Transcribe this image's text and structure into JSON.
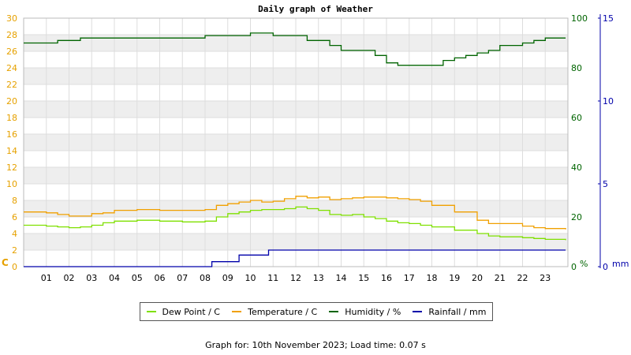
{
  "title": "Daily graph of Weather",
  "footer": "Graph for: 10th November 2023; Load time: 0.07 s",
  "colors": {
    "background": "#ffffff",
    "band": "#eeeeee",
    "grid": "#dddddd",
    "left_axis": "#e6a100",
    "right_axis_humidity": "#006400",
    "right_axis_rain": "#0000aa",
    "dew": "#7fe000",
    "temp": "#f0a000",
    "hum": "#006400",
    "rain": "#0000aa"
  },
  "chart_data": {
    "type": "line",
    "x_hours": [
      "01",
      "02",
      "03",
      "04",
      "05",
      "06",
      "07",
      "08",
      "09",
      "10",
      "11",
      "12",
      "13",
      "14",
      "15",
      "16",
      "17",
      "18",
      "19",
      "20",
      "21",
      "22",
      "23"
    ],
    "xlim": [
      0,
      24
    ],
    "axes": {
      "left": {
        "unit_label": "C",
        "ylim": [
          0,
          30
        ],
        "ticks": [
          0,
          2,
          4,
          6,
          8,
          10,
          12,
          14,
          16,
          18,
          20,
          22,
          24,
          26,
          28,
          30
        ]
      },
      "right_humidity": {
        "unit_label": "%",
        "ylim": [
          0,
          100
        ],
        "ticks": [
          0,
          20,
          40,
          60,
          80,
          100
        ]
      },
      "right_rain": {
        "unit_label": "mm",
        "ylim": [
          0,
          15
        ],
        "ticks": [
          0,
          5,
          10,
          15
        ]
      }
    },
    "grid": true,
    "legend": [
      {
        "key": "dew",
        "label": "Dew Point / C"
      },
      {
        "key": "temp",
        "label": "Temperature / C"
      },
      {
        "key": "hum",
        "label": "Humidity / %"
      },
      {
        "key": "rain",
        "label": "Rainfall / mm"
      }
    ],
    "series": [
      {
        "name": "Dew Point / C",
        "key": "dew",
        "axis": "left",
        "x": [
          0,
          1,
          1.5,
          2,
          2.5,
          3,
          3.5,
          4,
          5,
          6,
          7,
          7.5,
          8,
          8.5,
          9,
          9.5,
          10,
          10.5,
          11,
          11.5,
          12,
          12.5,
          13,
          13.5,
          14,
          14.5,
          15,
          15.5,
          16,
          16.5,
          17,
          17.5,
          18,
          19,
          20,
          20.5,
          21,
          22,
          22.5,
          23,
          23.9
        ],
        "y": [
          5.0,
          4.9,
          4.8,
          4.7,
          4.8,
          5.0,
          5.3,
          5.5,
          5.6,
          5.5,
          5.4,
          5.4,
          5.5,
          6.0,
          6.4,
          6.6,
          6.8,
          6.9,
          6.9,
          7.0,
          7.2,
          7.0,
          6.8,
          6.3,
          6.2,
          6.3,
          6.0,
          5.8,
          5.5,
          5.3,
          5.2,
          5.0,
          4.8,
          4.4,
          4.0,
          3.7,
          3.6,
          3.5,
          3.4,
          3.3,
          3.2
        ]
      },
      {
        "name": "Temperature / C",
        "key": "temp",
        "axis": "left",
        "x": [
          0,
          1,
          1.5,
          2,
          2.5,
          3,
          3.5,
          4,
          5,
          6,
          7,
          7.5,
          8,
          8.5,
          9,
          9.5,
          10,
          10.5,
          11,
          11.5,
          12,
          12.5,
          13,
          13.5,
          14,
          14.5,
          15,
          15.5,
          16,
          16.5,
          17,
          17.5,
          18,
          19,
          20,
          20.5,
          21,
          22,
          22.5,
          23,
          23.9
        ],
        "y": [
          6.6,
          6.5,
          6.3,
          6.1,
          6.1,
          6.4,
          6.5,
          6.8,
          6.9,
          6.8,
          6.8,
          6.8,
          6.9,
          7.4,
          7.6,
          7.8,
          8.0,
          7.8,
          7.9,
          8.2,
          8.5,
          8.3,
          8.4,
          8.1,
          8.2,
          8.3,
          8.4,
          8.4,
          8.3,
          8.2,
          8.1,
          7.9,
          7.4,
          6.6,
          5.6,
          5.2,
          5.2,
          4.9,
          4.7,
          4.6,
          4.5
        ]
      },
      {
        "name": "Humidity / %",
        "key": "hum",
        "axis": "right_humidity",
        "x": [
          0,
          1,
          1.5,
          2,
          2.5,
          3,
          4,
          5,
          6,
          7,
          7.5,
          8,
          9,
          9.5,
          10,
          11,
          11.5,
          12,
          12.5,
          13,
          13.5,
          14,
          14.5,
          15,
          15.5,
          16,
          16.5,
          17,
          17.5,
          18,
          18.5,
          19,
          19.5,
          20,
          20.5,
          21,
          22,
          22.5,
          23,
          23.9
        ],
        "y": [
          90,
          90,
          91,
          91,
          92,
          92,
          92,
          92,
          92,
          92,
          92,
          93,
          93,
          93,
          94,
          93,
          93,
          93,
          91,
          91,
          89,
          87,
          87,
          87,
          85,
          82,
          81,
          81,
          81,
          81,
          83,
          84,
          85,
          86,
          87,
          89,
          90,
          91,
          92,
          92
        ]
      },
      {
        "name": "Rainfall / mm",
        "key": "rain",
        "axis": "right_rain",
        "x": [
          0,
          8.3,
          8.3,
          9.5,
          9.5,
          10.8,
          10.8,
          23.9
        ],
        "y": [
          0,
          0,
          0.3,
          0.3,
          0.7,
          0.7,
          1.0,
          1.0
        ]
      }
    ]
  }
}
